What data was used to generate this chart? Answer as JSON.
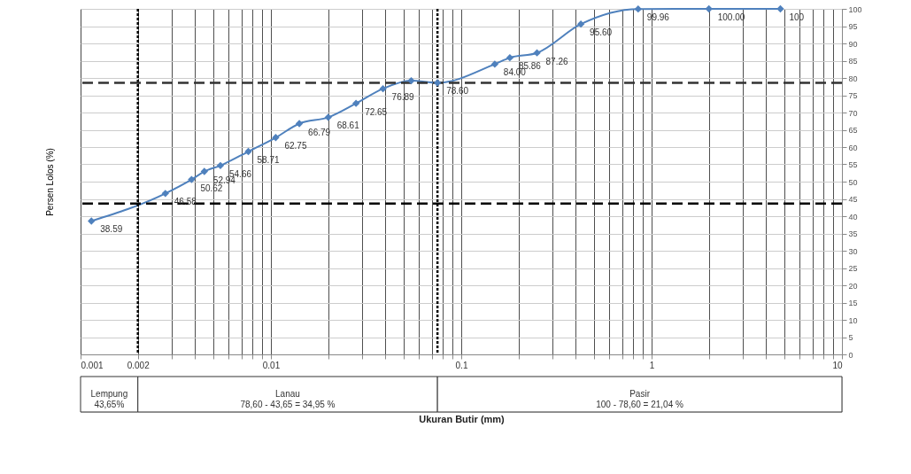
{
  "chart_data": {
    "type": "line",
    "xlabel": "Ukuran Butir (mm)",
    "ylabel": "Persen Lolos (%)",
    "log": "x",
    "xlim": [
      0.001,
      10
    ],
    "xticks": [
      0.001,
      0.002,
      {
        "value": 0.003,
        "label": null
      },
      {
        "value": 0.004,
        "label": null
      },
      {
        "value": 0.005,
        "label": null
      },
      {
        "value": 0.006,
        "label": null
      },
      {
        "value": 0.007,
        "label": null
      },
      {
        "value": 0.008,
        "label": null
      },
      {
        "value": 0.009,
        "label": null
      },
      0.01,
      {
        "value": 0.02,
        "label": null
      },
      {
        "value": 0.03,
        "label": null
      },
      {
        "value": 0.04,
        "label": null
      },
      {
        "value": 0.05,
        "label": null
      },
      {
        "value": 0.06,
        "label": null
      },
      {
        "value": 0.07,
        "label": null
      },
      {
        "value": 0.08,
        "label": null
      },
      {
        "value": 0.09,
        "label": null
      },
      0.1,
      {
        "value": 0.2,
        "label": null
      },
      {
        "value": 0.3,
        "label": null
      },
      {
        "value": 0.4,
        "label": null
      },
      {
        "value": 0.5,
        "label": null
      },
      {
        "value": 0.6,
        "label": null
      },
      {
        "value": 0.7,
        "label": null
      },
      {
        "value": 0.8,
        "label": null
      },
      {
        "value": 0.9,
        "label": null
      },
      1,
      {
        "value": 2,
        "label": null
      },
      {
        "value": 3,
        "label": null
      },
      {
        "value": 4,
        "label": null
      },
      {
        "value": 5,
        "label": null
      },
      {
        "value": 6,
        "label": null
      },
      {
        "value": 7,
        "label": null
      },
      {
        "value": 8,
        "label": null
      },
      {
        "value": 9,
        "label": null
      },
      10
    ],
    "ylim": [
      0,
      100
    ],
    "yticks": [
      0,
      5,
      10,
      15,
      20,
      25,
      30,
      35,
      40,
      45,
      50,
      55,
      60,
      65,
      70,
      75,
      80,
      85,
      90,
      95,
      100
    ],
    "grid": true,
    "marker": "diamond",
    "line_style": "solid",
    "series": [
      {
        "color": "#4f81bd",
        "x": [
          0.00114,
          0.00279,
          0.00383,
          0.00447,
          0.00543,
          0.00761,
          0.0106,
          0.0141,
          0.02,
          0.028,
          0.0388,
          0.0546,
          0.075,
          0.15,
          0.18,
          0.25,
          0.425,
          0.85,
          2,
          4.75
        ],
        "values": [
          38.59,
          46.58,
          50.62,
          52.94,
          54.66,
          58.71,
          62.75,
          66.79,
          68.61,
          72.65,
          76.89,
          79.2,
          78.6,
          84.0,
          85.86,
          87.26,
          95.6,
          99.96,
          100.0,
          100
        ],
        "value_labels": [
          "38.59",
          "46.58",
          "50.62",
          "52.94",
          "54.66",
          "58.71",
          "62.75",
          "66.79",
          "68.61",
          "72.65",
          "76.89",
          null,
          "78.60",
          "84.00",
          "85.86",
          "87.26",
          "95.60",
          "99.96",
          "100.00",
          "100"
        ]
      }
    ],
    "ref_lines": [
      {
        "axis": "y",
        "value": 78.6,
        "color": "#333333",
        "line_style": "dashed"
      },
      {
        "axis": "y",
        "value": 43.65,
        "color": "#000000",
        "line_style": "dashed"
      },
      {
        "axis": "x",
        "value": 0.002,
        "color": "#000000",
        "line_style": "dotted"
      },
      {
        "axis": "x",
        "value": 0.075,
        "color": "#000000",
        "line_style": "dotted"
      }
    ],
    "annotations": [
      "Lempung\n43,65%",
      "Lanau\n78,60 - 43,65 = 34,95 %",
      "Pasir\n100 - 78,60 = 21,04 %"
    ]
  }
}
